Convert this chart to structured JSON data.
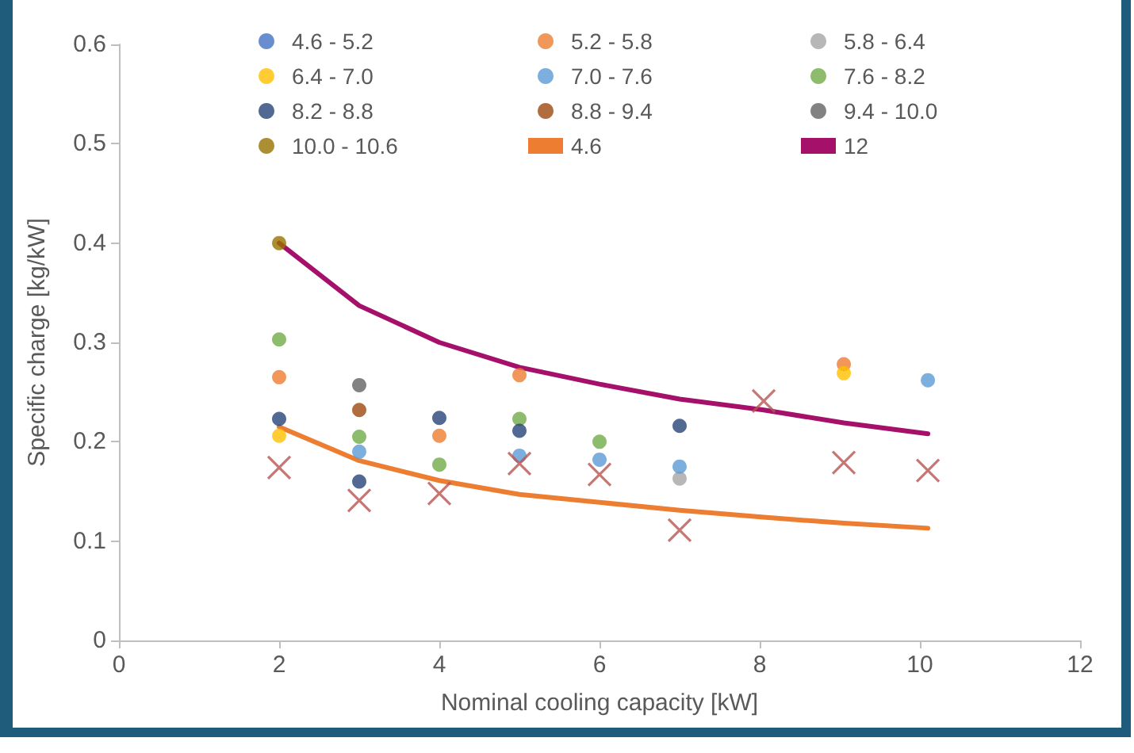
{
  "chart_data": {
    "type": "scatter",
    "xlabel": "Nominal cooling capacity [kW]",
    "ylabel": "Specific charge [kg/kW]",
    "x": [
      2,
      3,
      4,
      5,
      6,
      7,
      8.05,
      9.05,
      10.1
    ],
    "xlim": [
      0,
      12
    ],
    "xticks": [
      0,
      2,
      4,
      6,
      8,
      10,
      12
    ],
    "ylim": [
      0,
      0.6
    ],
    "yticks": [
      0,
      0.1,
      0.2,
      0.3,
      0.4,
      0.5,
      0.6
    ],
    "grid": false,
    "legend": "top",
    "marker": "circle",
    "series": [
      {
        "name": "4.6 - 5.2",
        "color": "#4472c4",
        "values": [
          null,
          null,
          null,
          null,
          null,
          null,
          null,
          null,
          null
        ]
      },
      {
        "name": "5.2 - 5.8",
        "color": "#ed7d31",
        "values": [
          0.265,
          null,
          0.206,
          0.267,
          null,
          null,
          null,
          0.278,
          null
        ]
      },
      {
        "name": "5.8 - 6.4",
        "color": "#a5a5a5",
        "values": [
          null,
          null,
          null,
          null,
          null,
          0.163,
          null,
          null,
          null
        ]
      },
      {
        "name": "6.4 - 7.0",
        "color": "#ffc000",
        "values": [
          0.206,
          null,
          null,
          null,
          null,
          null,
          null,
          0.269,
          null
        ]
      },
      {
        "name": "7.0 - 7.6",
        "color": "#5b9bd5",
        "values": [
          null,
          0.19,
          null,
          0.186,
          0.182,
          0.175,
          null,
          null,
          0.262
        ]
      },
      {
        "name": "7.6 - 8.2",
        "color": "#70ad47",
        "values": [
          0.303,
          0.205,
          0.177,
          0.223,
          0.2,
          null,
          null,
          null,
          null
        ]
      },
      {
        "name": "8.2 - 8.8",
        "color": "#264478",
        "values": [
          0.223,
          0.16,
          0.224,
          0.211,
          null,
          0.216,
          null,
          null,
          null
        ]
      },
      {
        "name": "8.8 - 9.4",
        "color": "#9e480e",
        "values": [
          null,
          0.232,
          null,
          null,
          null,
          null,
          null,
          null,
          null
        ]
      },
      {
        "name": "9.4 - 10.0",
        "color": "#636363",
        "values": [
          null,
          0.257,
          null,
          null,
          null,
          null,
          null,
          null,
          null
        ]
      },
      {
        "name": "10.0 - 10.6",
        "color": "#997300",
        "values": [
          0.4,
          null,
          null,
          null,
          null,
          null,
          null,
          null,
          null
        ]
      },
      {
        "name": "4.6",
        "type": "line",
        "color": "#ed7d31",
        "marker": "none",
        "values": [
          0.215,
          0.181,
          0.161,
          0.147,
          0.139,
          0.131,
          0.124,
          0.118,
          0.113
        ]
      },
      {
        "name": "12",
        "type": "line",
        "color": "#a5106a",
        "marker": "none",
        "values": [
          0.4,
          0.337,
          0.3,
          0.275,
          0.258,
          0.243,
          0.232,
          0.219,
          0.208
        ]
      },
      {
        "color": "#b85450",
        "marker": "cross",
        "values": [
          0.174,
          0.141,
          0.148,
          0.178,
          0.167,
          0.111,
          0.241,
          0.179,
          0.171
        ]
      }
    ]
  }
}
